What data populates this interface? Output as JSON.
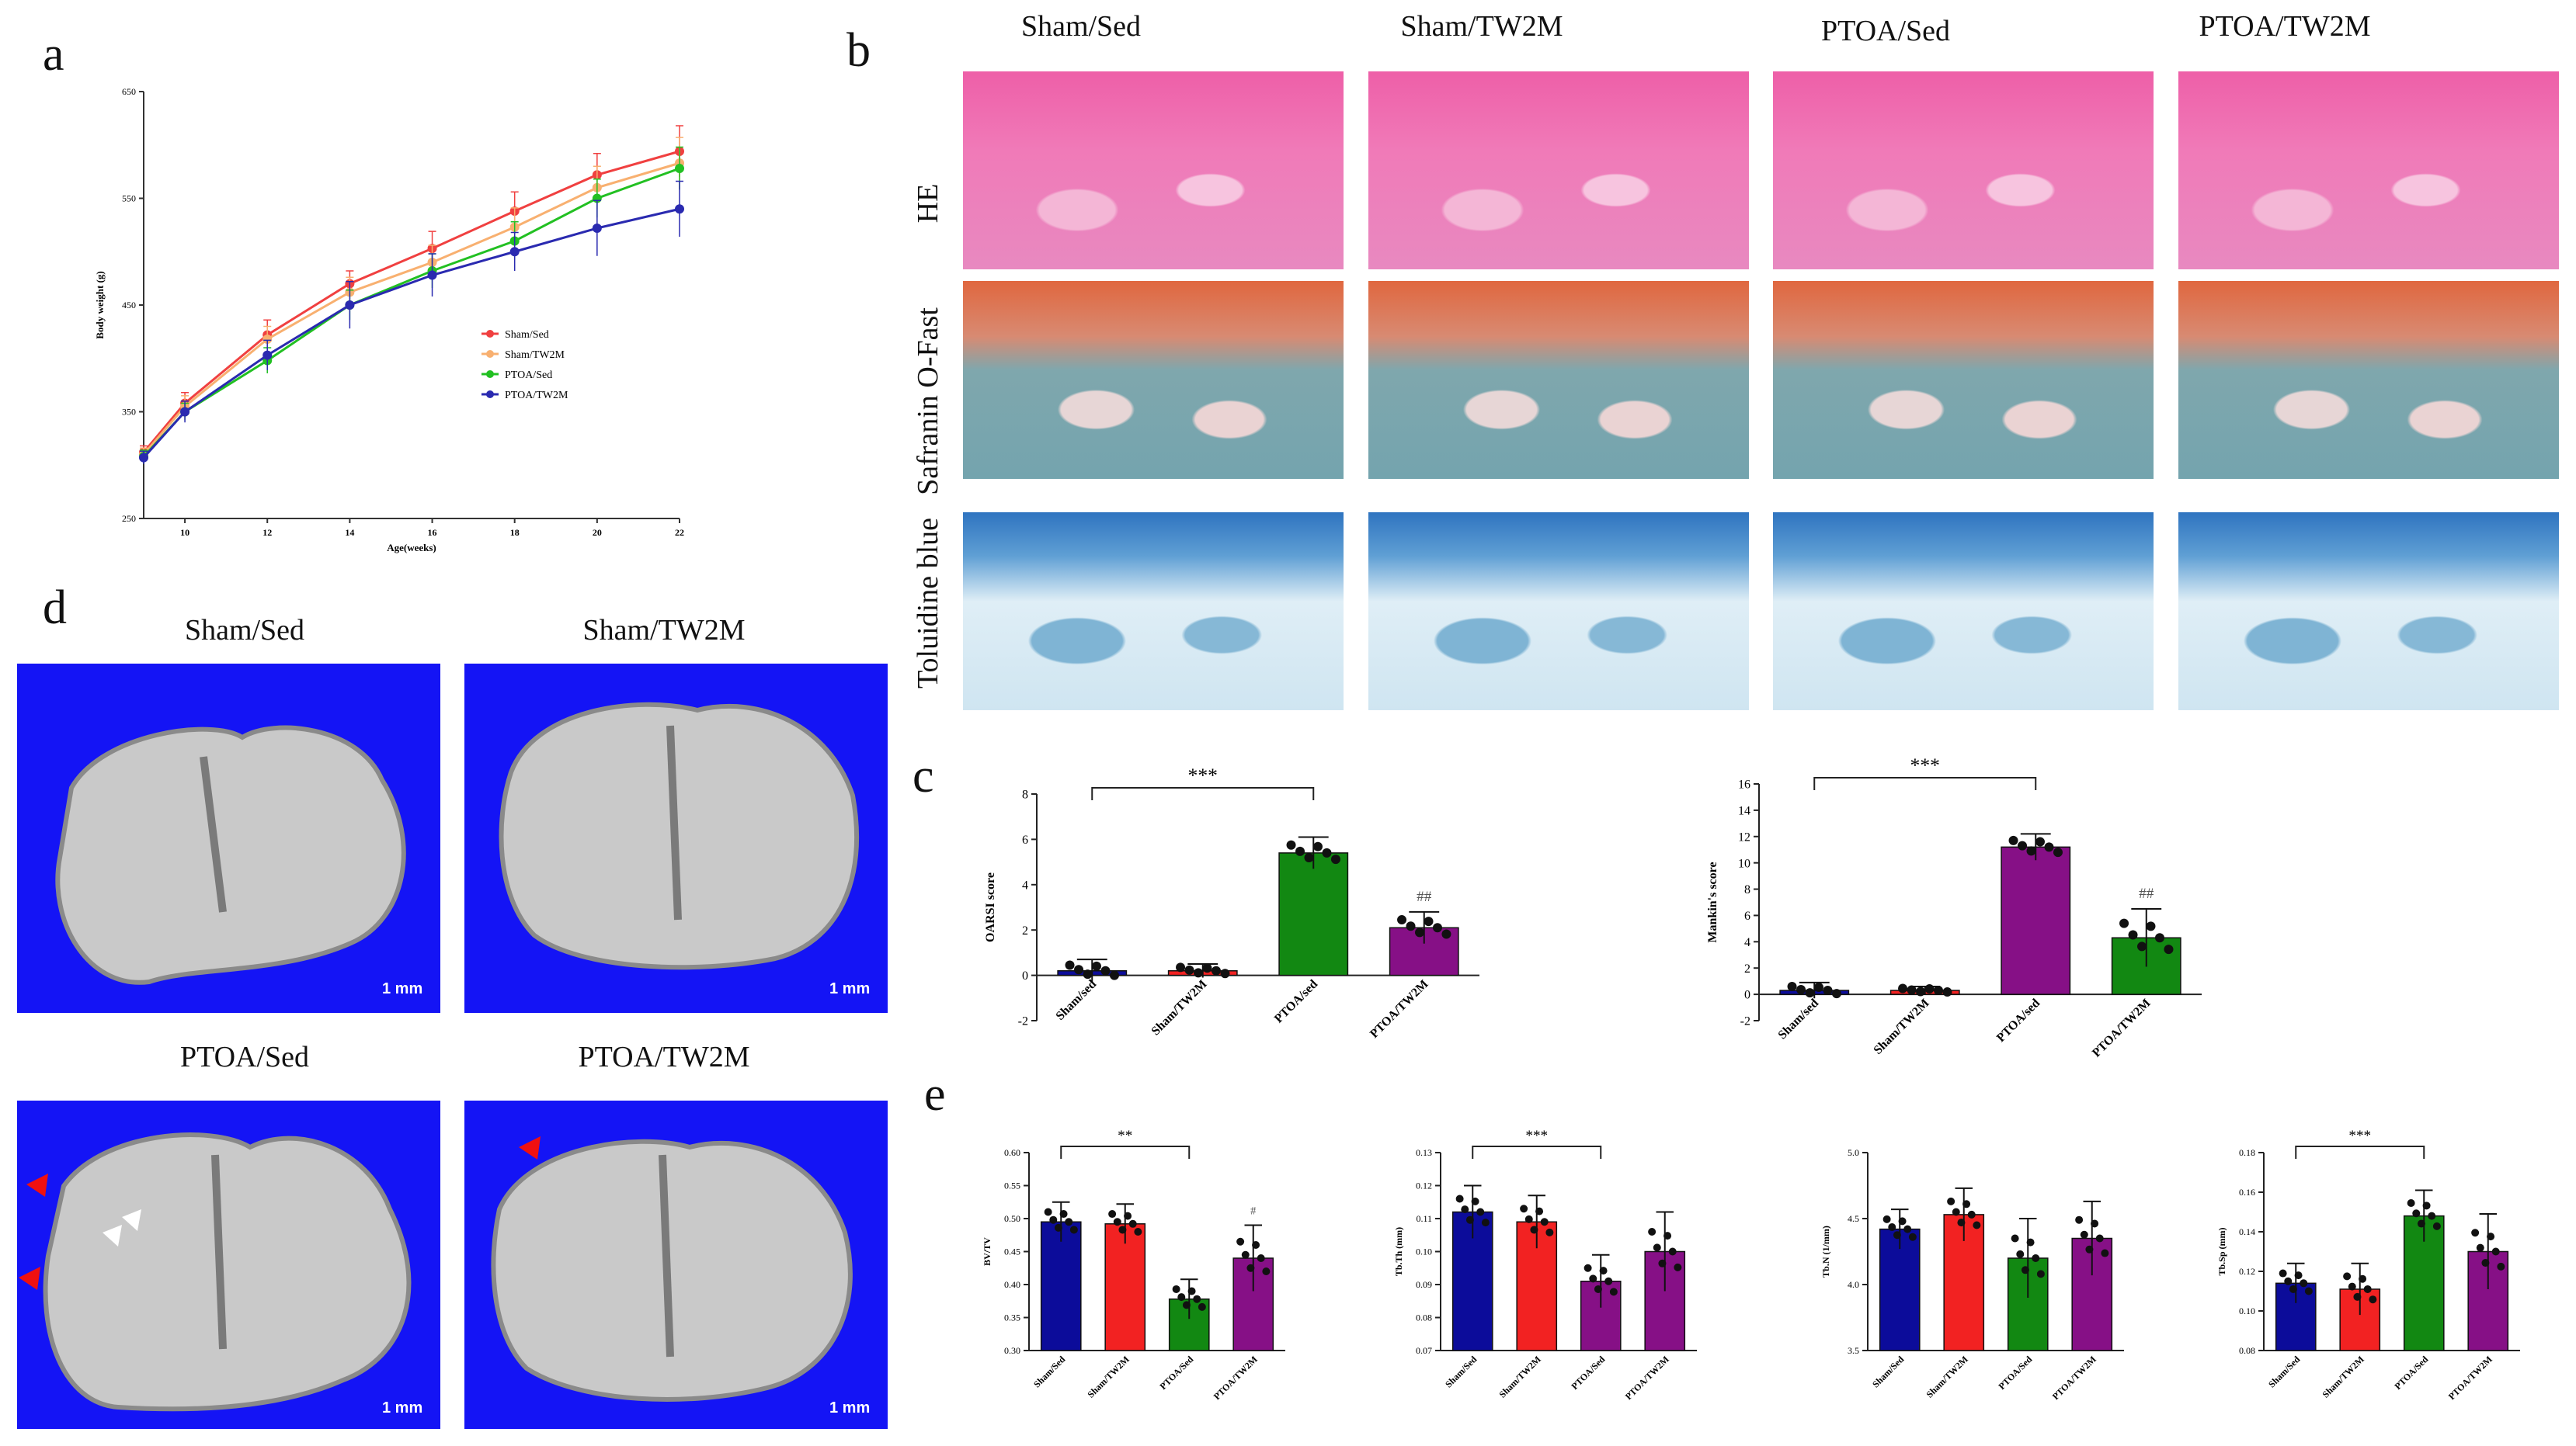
{
  "panel_labels": {
    "a": "a",
    "b": "b",
    "c": "c",
    "d": "d",
    "e": "e"
  },
  "histology": {
    "groups": [
      "Sham/Sed",
      "Sham/TW2M",
      "PTOA/Sed",
      "PTOA/TW2M"
    ],
    "stains": [
      "HE",
      "Safranin O-Fast",
      "Toluidine blue"
    ]
  },
  "microct": {
    "titles": [
      "Sham/Sed",
      "Sham/TW2M",
      "PTOA/Sed",
      "PTOA/TW2M"
    ],
    "scale_label": "1 mm"
  },
  "chart_data": [
    {
      "id": "body-weight",
      "type": "line",
      "title": "",
      "xlabel": "Age(weeks)",
      "ylabel": "Body weight (g)",
      "x": [
        9,
        10,
        12,
        14,
        16,
        18,
        20,
        22
      ],
      "xticks": [
        "10",
        "12",
        "14",
        "16",
        "18",
        "20",
        "22"
      ],
      "ylim": [
        250,
        650
      ],
      "yticks": [
        "250",
        "350",
        "450",
        "550",
        "650"
      ],
      "series": [
        {
          "name": "Sham/Sed",
          "color": "#f04040",
          "values": [
            312,
            358,
            422,
            470,
            503,
            538,
            572,
            594
          ],
          "err": [
            6,
            10,
            14,
            12,
            16,
            18,
            20,
            24
          ]
        },
        {
          "name": "Sham/TW2M",
          "color": "#f8b070",
          "values": [
            310,
            355,
            418,
            462,
            490,
            523,
            560,
            583
          ],
          "err": [
            6,
            10,
            12,
            14,
            16,
            18,
            20,
            24
          ]
        },
        {
          "name": "PTOA/Sed",
          "color": "#22c022",
          "values": [
            308,
            350,
            398,
            450,
            482,
            510,
            550,
            578
          ],
          "err": [
            6,
            8,
            12,
            14,
            16,
            18,
            18,
            20
          ]
        },
        {
          "name": "PTOA/TW2M",
          "color": "#2a2ab0",
          "values": [
            307,
            350,
            403,
            450,
            478,
            500,
            522,
            540
          ],
          "err": [
            6,
            10,
            14,
            22,
            20,
            18,
            26,
            26
          ]
        }
      ]
    },
    {
      "id": "oarsi",
      "type": "bar",
      "ylabel": "OARSI score",
      "categories": [
        "Sham/sed",
        "Sham/TW2M",
        "PTOA/sed",
        "PTOA/TW2M"
      ],
      "values": [
        0.2,
        0.2,
        5.4,
        2.1
      ],
      "err": [
        0.5,
        0.3,
        0.7,
        0.7
      ],
      "colors": [
        "#0c0c9a",
        "#f22222",
        "#128812",
        "#861086"
      ],
      "ylim": [
        -2,
        8
      ],
      "yticks": [
        "-2",
        "0",
        "2",
        "4",
        "6",
        "8"
      ],
      "annotations": {
        "sig": "***",
        "hash": "##"
      }
    },
    {
      "id": "mankin",
      "type": "bar",
      "ylabel": "Mankin's score",
      "categories": [
        "Sham/sed",
        "Sham/TW2M",
        "PTOA/sed",
        "PTOA/TW2M"
      ],
      "values": [
        0.3,
        0.3,
        11.2,
        4.3
      ],
      "err": [
        0.6,
        0.3,
        1.0,
        2.2
      ],
      "colors": [
        "#0c0c9a",
        "#f22222",
        "#861086",
        "#128812"
      ],
      "ylim": [
        -2,
        16
      ],
      "yticks": [
        "-2",
        "0",
        "2",
        "4",
        "6",
        "8",
        "10",
        "12",
        "14",
        "16"
      ],
      "annotations": {
        "sig": "***",
        "hash": "##"
      }
    },
    {
      "id": "bvtv",
      "type": "bar",
      "ylabel": "BV/TV",
      "categories": [
        "Sham/Sed",
        "Sham/TW2M",
        "PTOA/Sed",
        "PTOA/TW2M"
      ],
      "values": [
        0.495,
        0.492,
        0.378,
        0.44
      ],
      "err": [
        0.03,
        0.03,
        0.03,
        0.05
      ],
      "colors": [
        "#0c0c9a",
        "#f22222",
        "#128812",
        "#861086"
      ],
      "ylim": [
        0.3,
        0.6
      ],
      "yticks": [
        "0.30",
        "0.35",
        "0.40",
        "0.45",
        "0.50",
        "0.55",
        "0.60"
      ],
      "annotations": {
        "sig": "**",
        "hash": "#"
      }
    },
    {
      "id": "tbth",
      "type": "bar",
      "ylabel": "Tb.Th (mm)",
      "categories": [
        "Sham/Sed",
        "Sham/TW2M",
        "PTOA/Sed",
        "PTOA/TW2M"
      ],
      "values": [
        0.112,
        0.109,
        0.091,
        0.1
      ],
      "err": [
        0.008,
        0.008,
        0.008,
        0.012
      ],
      "colors": [
        "#0c0c9a",
        "#f22222",
        "#861086",
        "#861086"
      ],
      "ylim": [
        0.07,
        0.13
      ],
      "yticks": [
        "0.07",
        "0.08",
        "0.09",
        "0.10",
        "0.11",
        "0.12",
        "0.13"
      ],
      "annotations": {
        "sig": "***",
        "hash": ""
      }
    },
    {
      "id": "tbn",
      "type": "bar",
      "ylabel": "Tb.N (1/mm)",
      "categories": [
        "Sham/Sed",
        "Sham/TW2M",
        "PTOA/Sed",
        "PTOA/TW2M"
      ],
      "values": [
        4.42,
        4.53,
        4.2,
        4.35
      ],
      "err": [
        0.15,
        0.2,
        0.3,
        0.28
      ],
      "colors": [
        "#0c0c9a",
        "#f22222",
        "#128812",
        "#861086"
      ],
      "ylim": [
        3.5,
        5.0
      ],
      "yticks": [
        "3.5",
        "4.0",
        "4.5",
        "5.0"
      ],
      "annotations": {
        "sig": "",
        "hash": ""
      }
    },
    {
      "id": "tbsp",
      "type": "bar",
      "ylabel": "Tb.Sp (mm)",
      "categories": [
        "Sham/Sed",
        "Sham/TW2M",
        "PTOA/Sed",
        "PTOA/TW2M"
      ],
      "values": [
        0.114,
        0.111,
        0.148,
        0.13
      ],
      "err": [
        0.01,
        0.013,
        0.013,
        0.019
      ],
      "colors": [
        "#0c0c9a",
        "#f22222",
        "#128812",
        "#861086"
      ],
      "ylim": [
        0.08,
        0.18
      ],
      "yticks": [
        "0.08",
        "0.10",
        "0.12",
        "0.14",
        "0.16",
        "0.18"
      ],
      "annotations": {
        "sig": "***",
        "hash": ""
      }
    }
  ]
}
